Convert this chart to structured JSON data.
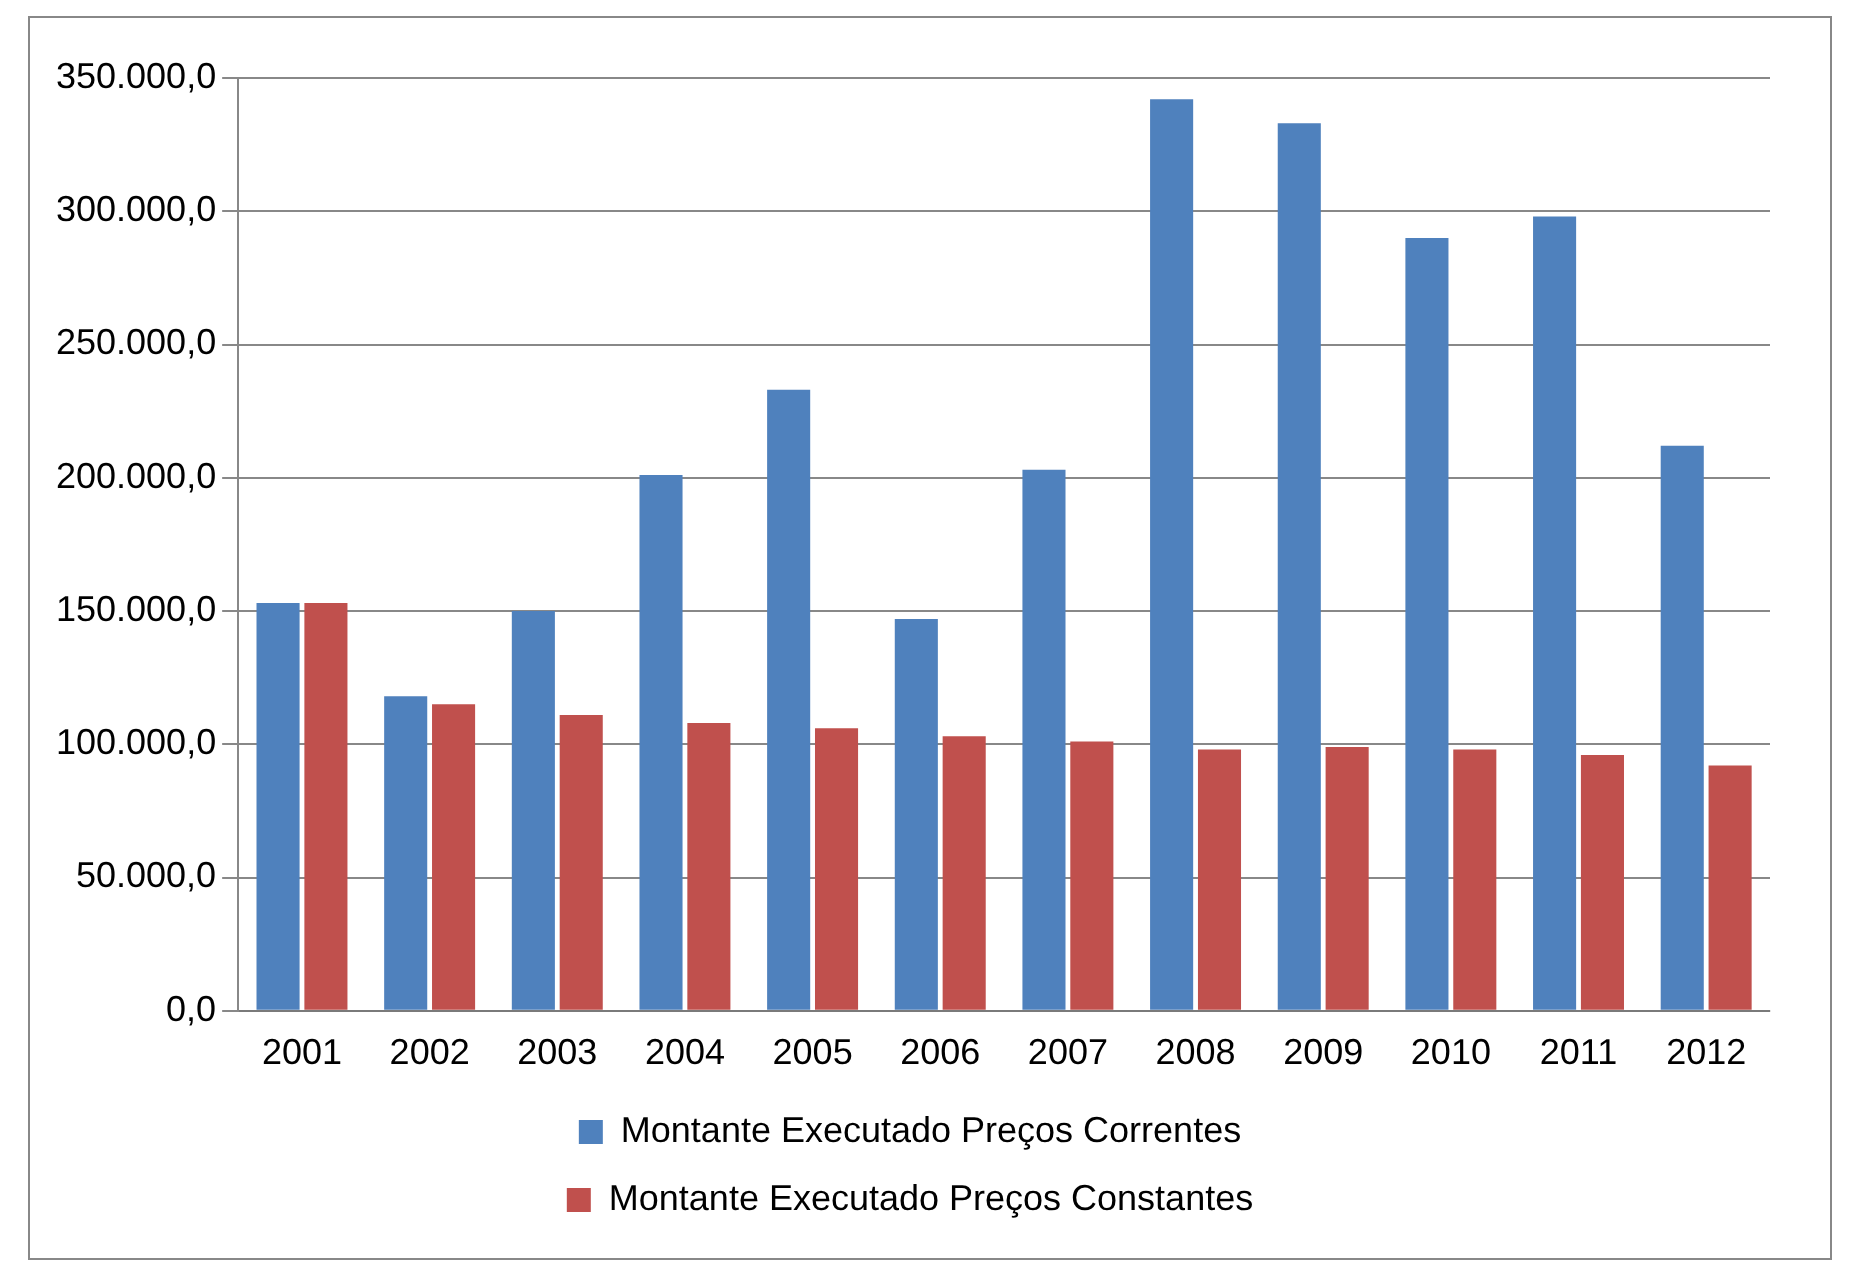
{
  "chart_data": {
    "type": "bar",
    "categories": [
      "2001",
      "2002",
      "2003",
      "2004",
      "2005",
      "2006",
      "2007",
      "2008",
      "2009",
      "2010",
      "2011",
      "2012"
    ],
    "series": [
      {
        "name": "Montante Executado Preços Correntes",
        "color": "#4f81bd",
        "values": [
          153000,
          118000,
          150000,
          201000,
          233000,
          147000,
          203000,
          342000,
          333000,
          290000,
          298000,
          212000
        ]
      },
      {
        "name": "Montante Executado Preços Constantes",
        "color": "#c0504d",
        "values": [
          153000,
          115000,
          111000,
          108000,
          106000,
          103000,
          101000,
          98000,
          99000,
          98000,
          96000,
          92000
        ]
      }
    ],
    "ylim": [
      0,
      350000
    ],
    "yticks": [
      {
        "value": 0,
        "label": "0,0"
      },
      {
        "value": 50000,
        "label": "50.000,0"
      },
      {
        "value": 100000,
        "label": "100.000,0"
      },
      {
        "value": 150000,
        "label": "150.000,0"
      },
      {
        "value": 200000,
        "label": "200.000,0"
      },
      {
        "value": 250000,
        "label": "250.000,0"
      },
      {
        "value": 300000,
        "label": "300.000,0"
      },
      {
        "value": 350000,
        "label": "350.000,0"
      }
    ],
    "grid": "y",
    "legend": "bottom"
  }
}
